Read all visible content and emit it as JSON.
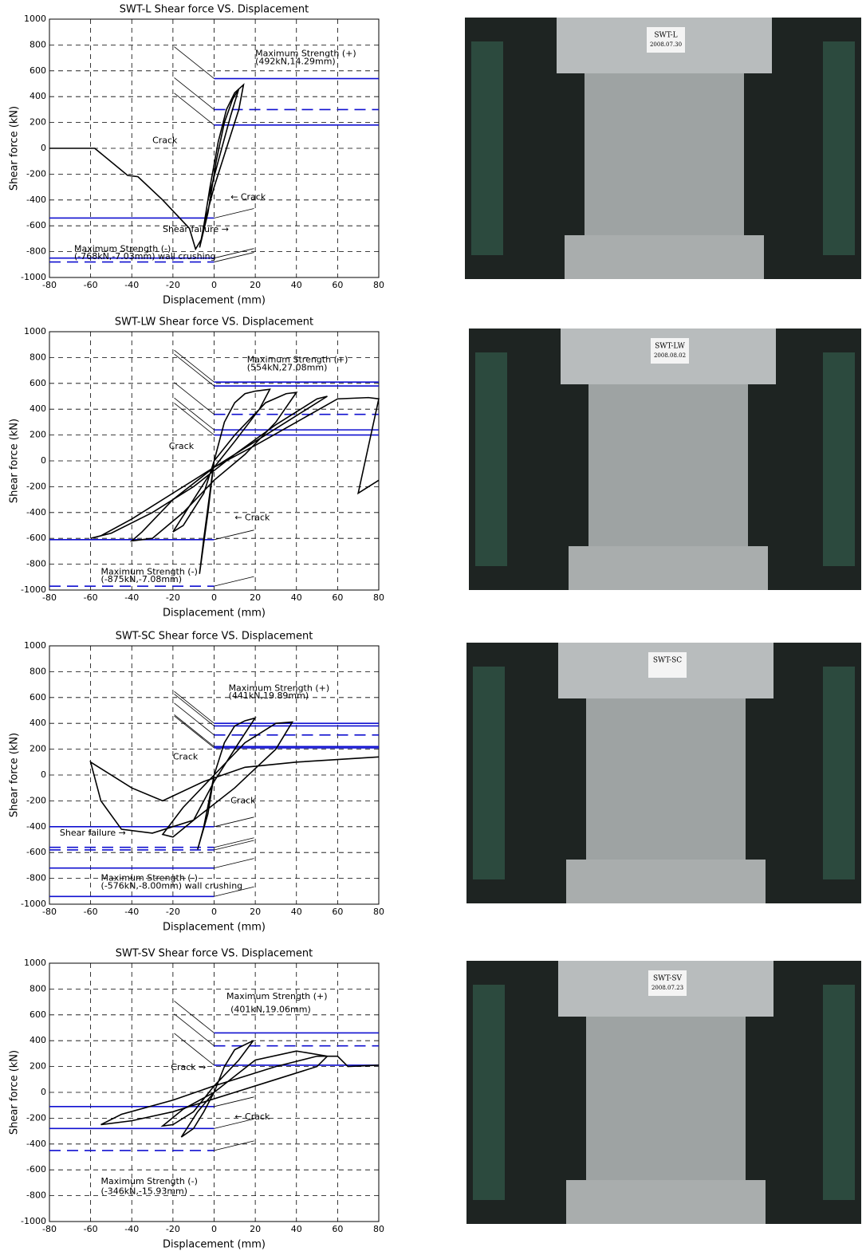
{
  "chart_data": [
    {
      "type": "line",
      "title": "SWT-L Shear force VS. Displacement",
      "x_label": "Displacement (mm)",
      "y_label": "Shear force (kN)",
      "xlim": [
        -80,
        80
      ],
      "ylim": [
        -1000,
        1000
      ],
      "xticks": [
        -80,
        -60,
        -40,
        -20,
        0,
        20,
        40,
        60,
        80
      ],
      "yticks": [
        -1000,
        -800,
        -600,
        -400,
        -200,
        0,
        200,
        400,
        600,
        800,
        1000
      ],
      "grid": true,
      "series": [
        {
          "color": "#000000",
          "x": [
            -80,
            -58,
            -42,
            -37,
            -25,
            -12,
            -9,
            -6,
            -2,
            2,
            6,
            10,
            14.29,
            12,
            6,
            0,
            -5,
            -7.03,
            -3,
            1,
            5,
            9,
            12,
            8,
            2,
            -3
          ],
          "values": [
            0,
            0,
            -210,
            -220,
            -400,
            -620,
            -780,
            -700,
            -300,
            50,
            300,
            430,
            492,
            300,
            0,
            -300,
            -600,
            -768,
            -500,
            -100,
            200,
            380,
            460,
            250,
            -100,
            -400
          ]
        }
      ],
      "reference_lines": [
        {
          "value": 540,
          "color": "#1010d0"
        },
        {
          "value": 300,
          "color": "#1010d0",
          "dashed": true
        },
        {
          "value": 180,
          "color": "#1010d0"
        },
        {
          "value": -540,
          "color": "#1010d0"
        },
        {
          "value": -850,
          "color": "#1010d0"
        },
        {
          "value": -880,
          "color": "#1010d0",
          "dashed": true
        }
      ],
      "annotations": [
        "Maximum Strength (+)",
        "(492kN,14.29mm)",
        "Crack",
        "← Crack",
        "Shear failure →",
        "Maximum Strength (-)",
        "(-768kN,-7.03mm) wall crushing"
      ]
    },
    {
      "type": "line",
      "title": "SWT-LW Shear force VS. Displacement",
      "x_label": "Displacement (mm)",
      "y_label": "Shear force (kN)",
      "xlim": [
        -80,
        80
      ],
      "ylim": [
        -1000,
        1000
      ],
      "xticks": [
        -80,
        -60,
        -40,
        -20,
        0,
        20,
        40,
        60,
        80
      ],
      "yticks": [
        -1000,
        -800,
        -600,
        -400,
        -200,
        0,
        200,
        400,
        600,
        800,
        1000
      ],
      "grid": true,
      "series": [
        {
          "color": "#000000",
          "x": [
            0,
            -5,
            -7.08,
            -3,
            0,
            5,
            10,
            15,
            20,
            27.08,
            22,
            10,
            0,
            -10,
            -20,
            -15,
            -5,
            0,
            10,
            25,
            35,
            40,
            30,
            15,
            0,
            -15,
            -30,
            -40,
            -35,
            -20,
            0,
            20,
            40,
            55,
            50,
            30,
            10,
            -10,
            -30,
            -50,
            -60,
            -55,
            -40,
            -20,
            0,
            20,
            40,
            60,
            75,
            80,
            70,
            80
          ],
          "values": [
            0,
            -600,
            -875,
            -400,
            0,
            300,
            450,
            520,
            540,
            554,
            400,
            150,
            -50,
            -300,
            -550,
            -500,
            -250,
            0,
            200,
            450,
            520,
            530,
            300,
            50,
            -150,
            -400,
            -600,
            -620,
            -550,
            -300,
            -50,
            150,
            350,
            500,
            480,
            280,
            50,
            -200,
            -400,
            -560,
            -600,
            -580,
            -450,
            -250,
            -50,
            120,
            300,
            480,
            490,
            480,
            -250,
            -150
          ]
        }
      ],
      "reference_lines": [
        {
          "value": 610,
          "color": "#1010d0"
        },
        {
          "value": 580,
          "color": "#1010d0"
        },
        {
          "value": 360,
          "color": "#1010d0",
          "dashed": true
        },
        {
          "value": 240,
          "color": "#1010d0"
        },
        {
          "value": 200,
          "color": "#1010d0"
        },
        {
          "value": -610,
          "color": "#1010d0"
        },
        {
          "value": -970,
          "color": "#1010d0",
          "dashed": true
        }
      ],
      "annotations": [
        "Maximum Strength (+)",
        "(554kN,27.08mm)",
        "Crack",
        "← Crack",
        "Maximum Strength (-)",
        "(-875kN,-7.08mm)"
      ]
    },
    {
      "type": "line",
      "title": "SWT-SC Shear force VS. Displacement",
      "x_label": "Displacement (mm)",
      "y_label": "Shear force (kN)",
      "xlim": [
        -80,
        80
      ],
      "ylim": [
        -1000,
        1000
      ],
      "xticks": [
        -80,
        -60,
        -40,
        -20,
        0,
        20,
        40,
        60,
        80
      ],
      "yticks": [
        -1000,
        -800,
        -600,
        -400,
        -200,
        0,
        200,
        400,
        600,
        800,
        1000
      ],
      "grid": true,
      "series": [
        {
          "color": "#000000",
          "x": [
            0,
            -5,
            -8,
            -3,
            0,
            5,
            10,
            15,
            19.89,
            12,
            0,
            -10,
            -20,
            -25,
            -15,
            0,
            15,
            30,
            38,
            30,
            10,
            -10,
            -30,
            -45,
            -55,
            -60,
            -40,
            -25,
            -5,
            15,
            40,
            60,
            80
          ],
          "values": [
            0,
            -400,
            -576,
            -300,
            0,
            250,
            380,
            420,
            441,
            250,
            -50,
            -350,
            -480,
            -460,
            -250,
            0,
            250,
            400,
            410,
            200,
            -100,
            -350,
            -450,
            -420,
            -200,
            100,
            -100,
            -200,
            -50,
            60,
            100,
            120,
            140
          ]
        }
      ],
      "reference_lines": [
        {
          "value": 400,
          "color": "#1010d0"
        },
        {
          "value": 380,
          "color": "#1010d0"
        },
        {
          "value": 310,
          "color": "#1010d0",
          "dashed": true
        },
        {
          "value": 220,
          "color": "#1010d0"
        },
        {
          "value": 210,
          "color": "#1010d0"
        },
        {
          "value": -400,
          "color": "#1010d0"
        },
        {
          "value": -560,
          "color": "#1010d0",
          "dashed": true
        },
        {
          "value": -580,
          "color": "#1010d0",
          "dashed": true
        },
        {
          "value": -720,
          "color": "#1010d0"
        },
        {
          "value": -940,
          "color": "#1010d0"
        }
      ],
      "annotations": [
        "Maximum Strength (+)",
        "(441kN,19.89mm)",
        "Crack",
        "Crack",
        "Shear failure →",
        "Maximum Strength (-)",
        "(-576kN,-8.00mm) wall crushing"
      ]
    },
    {
      "type": "line",
      "title": "SWT-SV Shear force VS. Displacement",
      "x_label": "Displacement (mm)",
      "y_label": "Shear force (kN)",
      "xlim": [
        -80,
        80
      ],
      "ylim": [
        -1000,
        1000
      ],
      "xticks": [
        -80,
        -60,
        -40,
        -20,
        0,
        20,
        40,
        60,
        80
      ],
      "yticks": [
        -1000,
        -800,
        -600,
        -400,
        -200,
        0,
        200,
        400,
        600,
        800,
        1000
      ],
      "grid": true,
      "series": [
        {
          "color": "#000000",
          "x": [
            0,
            -5,
            -10,
            -15.93,
            -8,
            0,
            5,
            10,
            19.06,
            12,
            0,
            -10,
            -20,
            -25,
            -15,
            0,
            20,
            40,
            55,
            50,
            30,
            10,
            -20,
            -40,
            -55,
            -45,
            -20,
            0,
            30,
            50,
            60,
            65,
            80
          ],
          "values": [
            0,
            -150,
            -280,
            -346,
            -150,
            0,
            200,
            330,
            401,
            250,
            50,
            -150,
            -250,
            -260,
            -130,
            0,
            250,
            320,
            280,
            200,
            100,
            0,
            -150,
            -220,
            -250,
            -170,
            -60,
            50,
            200,
            280,
            280,
            200,
            210
          ]
        }
      ],
      "reference_lines": [
        {
          "value": 460,
          "color": "#1010d0"
        },
        {
          "value": 360,
          "color": "#1010d0",
          "dashed": true
        },
        {
          "value": 210,
          "color": "#1010d0"
        },
        {
          "value": -110,
          "color": "#1010d0"
        },
        {
          "value": -280,
          "color": "#1010d0"
        },
        {
          "value": -450,
          "color": "#1010d0",
          "dashed": true
        }
      ],
      "annotations": [
        "Maximum Strength (+)",
        "(401kN,19.06mm)",
        "Crack →",
        "← Crack",
        "Maximum Strength (-)",
        "(-346kN,-15.93mm)"
      ]
    }
  ],
  "photos": [
    {
      "label": "SWT-L",
      "date": "2008.07.30"
    },
    {
      "label": "SWT-LW",
      "date": "2008.08.02"
    },
    {
      "label": "SWT-SC"
    },
    {
      "label": "SWT-SV",
      "date": "2008.07.23"
    }
  ]
}
